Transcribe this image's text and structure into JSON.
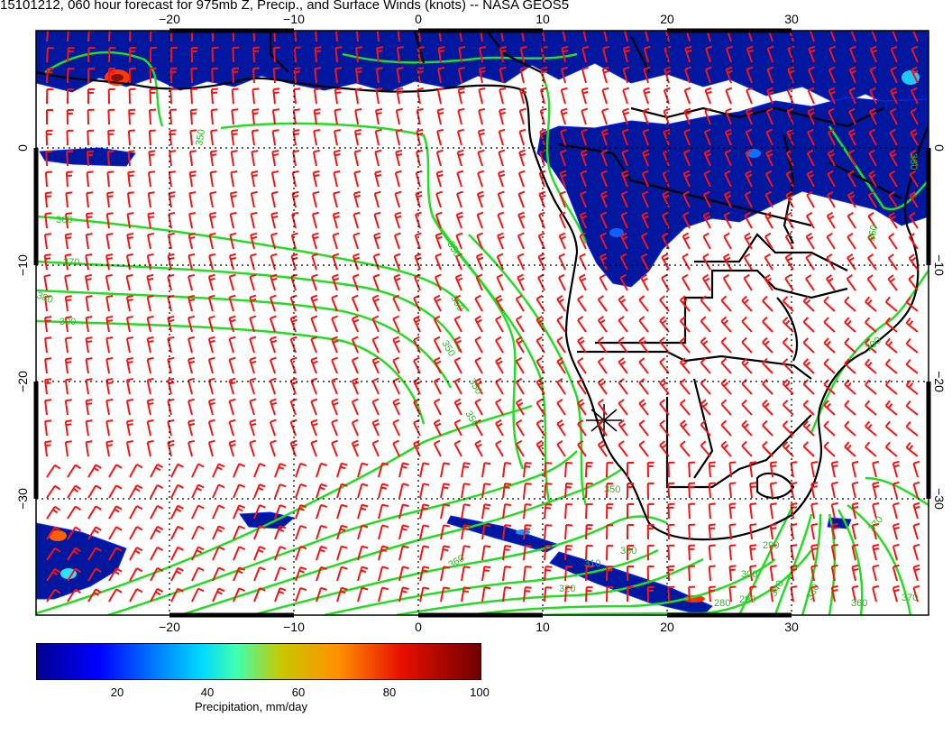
{
  "title": "15101212, 060 hour forecast for 975mb Z, Precip., and Surface Winds (knots) -- NASA GEOS5",
  "map": {
    "lon_range": [
      -30,
      40
    ],
    "lat_range": [
      -40,
      10
    ],
    "lon_ticks": [
      -20,
      -10,
      0,
      10,
      20,
      30
    ],
    "lat_ticks": [
      0,
      -10,
      -20,
      -30
    ],
    "lon_tick_labels": [
      "−20",
      "−10",
      "0",
      "10",
      "20",
      "30"
    ],
    "lat_tick_labels": [
      "0",
      "−10",
      "−20",
      "−30"
    ],
    "contour_labels": [
      "350",
      "360",
      "370",
      "380",
      "390",
      "350",
      "350",
      "350",
      "350",
      "350",
      "350",
      "360",
      "380",
      "370",
      "300",
      "290",
      "330",
      "310",
      "320",
      "340",
      "330",
      "360",
      "370",
      "280",
      "290",
      "390",
      "360"
    ],
    "colors": {
      "precip_core": "#0018a0",
      "contour": "#22dd22",
      "barb": "#ff1010",
      "coast": "#000000"
    }
  },
  "colorbar": {
    "ticks": [
      "20",
      "40",
      "60",
      "80",
      "100"
    ],
    "values": [
      20,
      40,
      60,
      80,
      100
    ],
    "range": [
      0,
      100
    ],
    "label": "Precipitation, mm/day"
  }
}
